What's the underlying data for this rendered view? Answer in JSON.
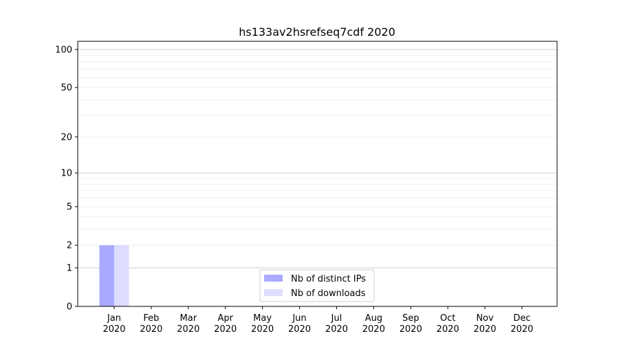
{
  "chart_data": {
    "type": "bar",
    "title": "hs133av2hsrefseq7cdf 2020",
    "xlabel": "",
    "ylabel": "",
    "yscale": "symlog",
    "ylim": [
      0,
      116
    ],
    "yticks": [
      0,
      1,
      2,
      5,
      10,
      20,
      50,
      100
    ],
    "grid": true,
    "legend_position": "lower-center",
    "categories": [
      [
        "Jan",
        "2020"
      ],
      [
        "Feb",
        "2020"
      ],
      [
        "Mar",
        "2020"
      ],
      [
        "Apr",
        "2020"
      ],
      [
        "May",
        "2020"
      ],
      [
        "Jun",
        "2020"
      ],
      [
        "Jul",
        "2020"
      ],
      [
        "Aug",
        "2020"
      ],
      [
        "Sep",
        "2020"
      ],
      [
        "Oct",
        "2020"
      ],
      [
        "Nov",
        "2020"
      ],
      [
        "Dec",
        "2020"
      ]
    ],
    "series": [
      {
        "name": "Nb of distinct IPs",
        "color": "#aaaaff",
        "values": [
          2,
          0,
          0,
          0,
          0,
          0,
          0,
          0,
          0,
          0,
          0,
          0
        ]
      },
      {
        "name": "Nb of downloads",
        "color": "#ddddff",
        "values": [
          2,
          0,
          0,
          0,
          0,
          0,
          0,
          0,
          0,
          0,
          0,
          0
        ]
      }
    ]
  }
}
